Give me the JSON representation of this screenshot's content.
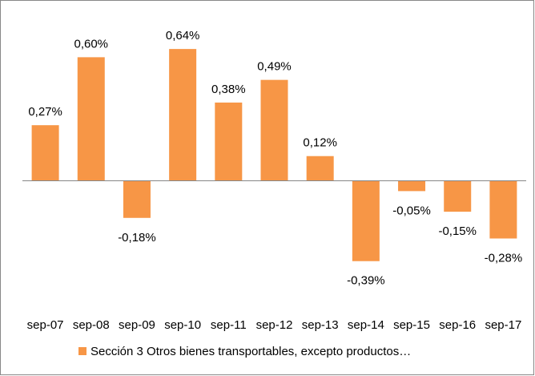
{
  "chart_data": {
    "type": "bar",
    "categories": [
      "sep-07",
      "sep-08",
      "sep-09",
      "sep-10",
      "sep-11",
      "sep-12",
      "sep-13",
      "sep-14",
      "sep-15",
      "sep-16",
      "sep-17"
    ],
    "series": [
      {
        "name": "Sección 3 Otros bienes transportables, excepto productos…",
        "color": "#f79646",
        "values": [
          0.27,
          0.6,
          -0.18,
          0.64,
          0.38,
          0.49,
          0.12,
          -0.39,
          -0.05,
          -0.15,
          -0.28
        ],
        "value_labels": [
          "0,27%",
          "0,60%",
          "-0,18%",
          "0,64%",
          "0,38%",
          "0,49%",
          "0,12%",
          "-0,39%",
          "-0,05%",
          "-0,15%",
          "-0,28%"
        ]
      }
    ],
    "ylim": [
      -0.5,
      0.8
    ],
    "legend": "bottom"
  }
}
